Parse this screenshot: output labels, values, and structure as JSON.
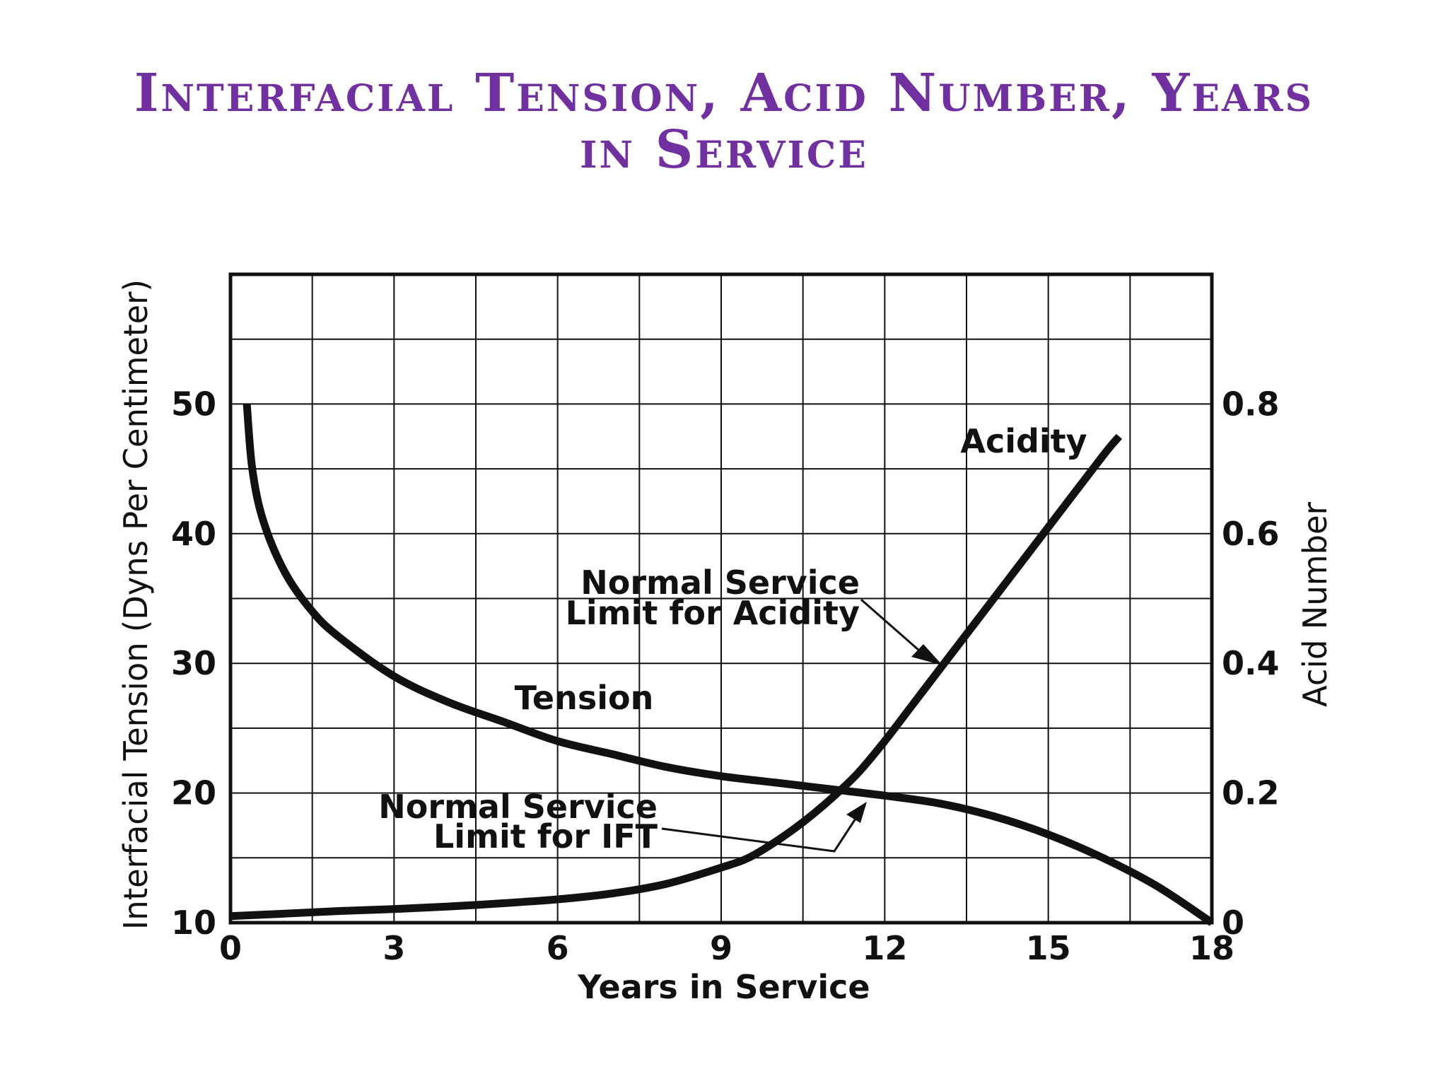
{
  "slide": {
    "title_line_1": "Interfacial Tension, Acid Number, Years",
    "title_line_2": "in Service",
    "title_color": "#7030A0"
  },
  "chart_data": {
    "type": "line",
    "xlabel": "Years in Service",
    "ylabel_left": "Interfacial Tension (Dyns Per Centimeter)",
    "ylabel_right": "Acid Number",
    "xlim": [
      0,
      18
    ],
    "ylim_left": [
      10,
      60
    ],
    "ylim_right": [
      0,
      1
    ],
    "x_ticks": [
      "0",
      "3",
      "6",
      "9",
      "12",
      "15",
      "18"
    ],
    "y_left_ticks": [
      "10",
      "20",
      "30",
      "40",
      "50"
    ],
    "y_right_ticks": [
      "0",
      "0.2",
      "0.4",
      "0.6",
      "0.8"
    ],
    "grid": true,
    "series": [
      {
        "name": "Tension",
        "axis": "left",
        "x": [
          0.3,
          0.4,
          0.6,
          1.0,
          1.5,
          2.0,
          3.0,
          4.0,
          5.0,
          6.0,
          7.0,
          8.0,
          9.0,
          10.0,
          11.0,
          12.0,
          13.0,
          14.0,
          15.0,
          16.0,
          17.0,
          18.0
        ],
        "y": [
          50,
          45,
          41,
          37,
          34,
          32,
          29,
          27,
          25.5,
          24,
          23,
          22,
          21.3,
          20.8,
          20.3,
          19.8,
          19.2,
          18.2,
          16.8,
          15,
          12.8,
          10
        ]
      },
      {
        "name": "Acidity",
        "axis": "right",
        "x": [
          0,
          1,
          2,
          3,
          4,
          5,
          6,
          7,
          8,
          9,
          9.5,
          10,
          10.5,
          11,
          11.5,
          12,
          12.5,
          13,
          14,
          15,
          16,
          16.3
        ],
        "y": [
          0.01,
          0.014,
          0.018,
          0.021,
          0.025,
          0.03,
          0.036,
          0.045,
          0.06,
          0.085,
          0.1,
          0.125,
          0.155,
          0.19,
          0.23,
          0.28,
          0.335,
          0.39,
          0.5,
          0.61,
          0.72,
          0.75
        ]
      }
    ],
    "annotations": {
      "tension_label": "Tension",
      "acidity_label": "Acidity",
      "acid_limit_line_1": "Normal Service",
      "acid_limit_line_2": "Limit for Acidity",
      "ift_limit_line_1": "Normal Service",
      "ift_limit_line_2": "Limit for IFT"
    }
  }
}
